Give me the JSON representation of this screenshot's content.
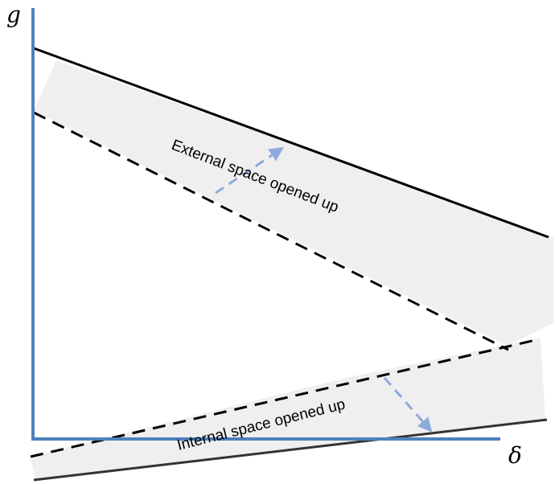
{
  "axes": {
    "y_label": "g",
    "x_label": "δ",
    "color": "#4f81bd"
  },
  "regions": {
    "external": {
      "label": "External space opened up",
      "fill": "#efefef"
    },
    "internal": {
      "label": "Internal space opened up",
      "fill": "#efefef"
    }
  },
  "lines": {
    "solid_color": "#000000",
    "dashed_color": "#000000",
    "arrow_color": "#8eaadb"
  }
}
